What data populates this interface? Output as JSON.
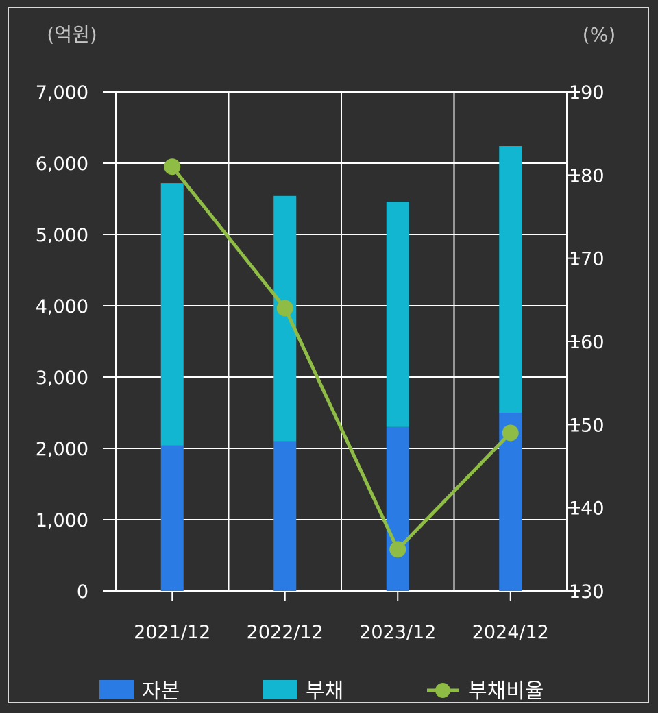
{
  "chart_data": {
    "type": "bar",
    "categories": [
      "2021/12",
      "2022/12",
      "2023/12",
      "2024/12"
    ],
    "series": [
      {
        "name": "자본",
        "kind": "bar",
        "stack": "total",
        "axis": "left",
        "color": "#2b7be4",
        "values": [
          2040,
          2100,
          2300,
          2500
        ]
      },
      {
        "name": "부채",
        "kind": "bar",
        "stack": "total",
        "axis": "left",
        "color": "#12b6d1",
        "values": [
          3680,
          3440,
          3160,
          3740
        ]
      },
      {
        "name": "부채비율",
        "kind": "line",
        "axis": "right",
        "color": "#8fbc45",
        "values": [
          181,
          164,
          135,
          149
        ]
      }
    ],
    "left_axis": {
      "unit_label": "(억원)",
      "ylim": [
        0,
        7000
      ],
      "ticks": [
        "0",
        "1,000",
        "2,000",
        "3,000",
        "4,000",
        "5,000",
        "6,000",
        "7,000"
      ]
    },
    "right_axis": {
      "unit_label": "(%)",
      "ylim": [
        130,
        190
      ],
      "ticks": [
        "130",
        "140",
        "150",
        "160",
        "170",
        "180",
        "190"
      ]
    },
    "grid": true,
    "legend_position": "bottom",
    "background": "#2f2f2f",
    "grid_color": "#ffffff"
  }
}
